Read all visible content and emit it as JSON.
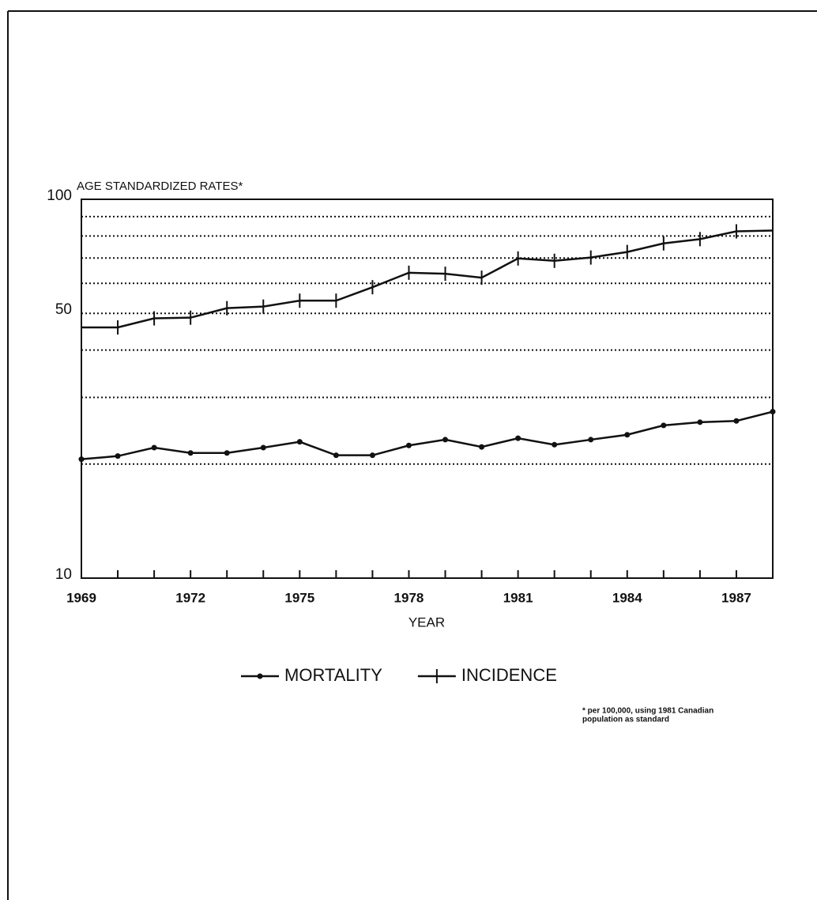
{
  "chart_data": {
    "type": "line",
    "ylabel": "AGE STANDARDIZED RATES*",
    "xlabel": "YEAR",
    "footnote": [
      "* per 100,000, using 1981 Canadian",
      "population as standard"
    ],
    "xlim": [
      1969,
      1988
    ],
    "xticks": [
      1969,
      1972,
      1975,
      1978,
      1981,
      1984,
      1987
    ],
    "ylim": [
      10,
      100
    ],
    "yticks": [
      10,
      50,
      100
    ],
    "ylog": true,
    "grid_values": [
      20,
      30,
      40,
      60,
      70,
      80,
      90
    ],
    "x": [
      1969,
      1970,
      1971,
      1972,
      1973,
      1974,
      1975,
      1976,
      1977,
      1978,
      1979,
      1980,
      1981,
      1982,
      1983,
      1984,
      1985,
      1986,
      1987,
      1988
    ],
    "series": [
      {
        "name": "MORTALITY",
        "color": "#111",
        "marker": "dot",
        "values": [
          20.6,
          21.0,
          22.1,
          21.4,
          21.4,
          22.1,
          22.9,
          21.1,
          21.1,
          22.4,
          23.2,
          22.2,
          23.4,
          22.5,
          23.2,
          23.9,
          25.3,
          25.8,
          26.0,
          27.5
        ]
      },
      {
        "name": "INCIDENCE",
        "color": "#111",
        "marker": "cross",
        "values": [
          45.9,
          45.9,
          48.5,
          48.7,
          51.6,
          52.1,
          54.0,
          54.0,
          58.6,
          64.0,
          63.6,
          62.1,
          69.8,
          68.8,
          70.2,
          72.6,
          76.5,
          78.5,
          82.3,
          82.7
        ]
      }
    ]
  }
}
